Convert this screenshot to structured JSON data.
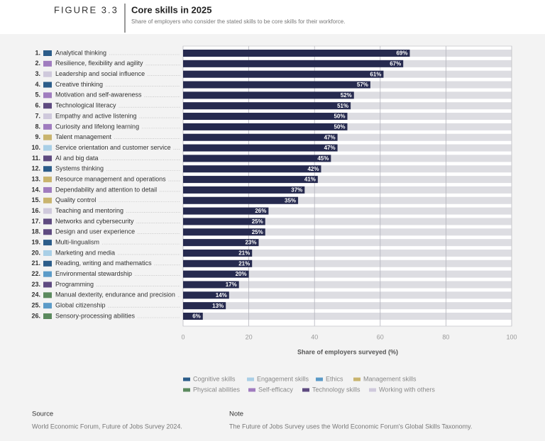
{
  "figure_label": "FIGURE 3.3",
  "chart_data": {
    "type": "bar",
    "orientation": "horizontal",
    "title": "Core skills in 2025",
    "subtitle": "Share of employers who consider the stated skills to be core skills for their workforce.",
    "ranks": [
      "1.",
      "2.",
      "3.",
      "4.",
      "5.",
      "6.",
      "7.",
      "8.",
      "9.",
      "10.",
      "11.",
      "12.",
      "13.",
      "14.",
      "15.",
      "16.",
      "17.",
      "18.",
      "19.",
      "20.",
      "21.",
      "22.",
      "23.",
      "24.",
      "25.",
      "26."
    ],
    "categories": [
      "Analytical thinking",
      "Resilience, flexibility and agility",
      "Leadership and social influence",
      "Creative thinking",
      "Motivation and self-awareness",
      "Technological literacy",
      "Empathy and active listening",
      "Curiosity and lifelong learning",
      "Talent management",
      "Service orientation and customer service",
      "AI and big data",
      "Systems thinking",
      "Resource management and operations",
      "Dependability and attention to detail",
      "Quality control",
      "Teaching and mentoring",
      "Networks and cybersecurity",
      "Design and user experience",
      "Multi-lingualism",
      "Marketing and media",
      "Reading, writing and mathematics",
      "Environmental stewardship",
      "Programming",
      "Manual dexterity, endurance and precision",
      "Global citizenship",
      "Sensory-processing abilities"
    ],
    "category_colors": [
      "#2c5d8a",
      "#a07cbf",
      "#cfc9dc",
      "#2c5d8a",
      "#a07cbf",
      "#5e4a80",
      "#cfc9dc",
      "#a07cbf",
      "#c9b46e",
      "#a9cfe6",
      "#5e4a80",
      "#2c5d8a",
      "#c9b46e",
      "#a07cbf",
      "#c9b46e",
      "#cfc9dc",
      "#5e4a80",
      "#5e4a80",
      "#2c5d8a",
      "#a9cfe6",
      "#2c5d8a",
      "#5b9bc8",
      "#5e4a80",
      "#5b8a5e",
      "#5b9bc8",
      "#5b8a5e"
    ],
    "values": [
      69,
      67,
      61,
      57,
      52,
      51,
      50,
      50,
      47,
      47,
      45,
      42,
      41,
      37,
      35,
      26,
      25,
      25,
      23,
      21,
      21,
      20,
      17,
      14,
      13,
      6
    ],
    "value_labels": [
      "69%",
      "67%",
      "61%",
      "57%",
      "52%",
      "51%",
      "50%",
      "50%",
      "47%",
      "47%",
      "45%",
      "42%",
      "41%",
      "37%",
      "35%",
      "26%",
      "25%",
      "25%",
      "23%",
      "21%",
      "21%",
      "20%",
      "17%",
      "14%",
      "13%",
      "6%"
    ],
    "color": "#262a4f",
    "background_bar_color": "#dddde2",
    "xlim": [
      0,
      100
    ],
    "xticks": [
      0,
      20,
      40,
      60,
      80,
      100
    ],
    "grid": true,
    "x_label": "Share of employers surveyed (%)",
    "legend": [
      {
        "name": "Cognitive skills",
        "color": "#2c5d8a"
      },
      {
        "name": "Engagement skills",
        "color": "#a9cfe6"
      },
      {
        "name": "Ethics",
        "color": "#5b9bc8"
      },
      {
        "name": "Management skills",
        "color": "#c9b46e"
      },
      {
        "name": "Physical abilities",
        "color": "#5b8a5e"
      },
      {
        "name": "Self-efficacy",
        "color": "#a07cbf"
      },
      {
        "name": "Technology skills",
        "color": "#5e4a80"
      },
      {
        "name": "Working with others",
        "color": "#cfc9dc"
      }
    ]
  },
  "source": {
    "heading": "Source",
    "text": "World Economic Forum, Future of Jobs Survey 2024."
  },
  "note": {
    "heading": "Note",
    "text": "The Future of Jobs Survey uses the World Economic Forum's Global Skills Taxonomy."
  }
}
